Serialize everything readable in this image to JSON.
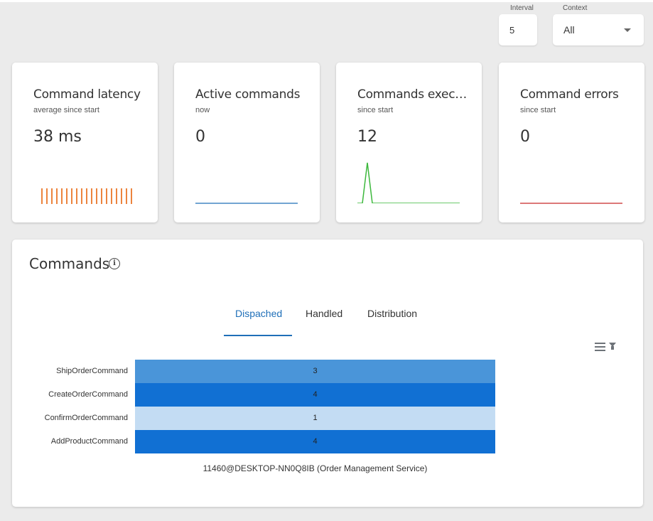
{
  "controls": {
    "interval": {
      "label": "Interval",
      "value": "5"
    },
    "context": {
      "label": "Context",
      "value": "All"
    }
  },
  "cards": [
    {
      "title": "Command latency",
      "subtitle": "average since start",
      "value": "38 ms",
      "color": "#e8650e"
    },
    {
      "title": "Active commands",
      "subtitle": "now",
      "value": "0",
      "color": "#1f6fb8"
    },
    {
      "title": "Commands exec…",
      "subtitle": "since start",
      "value": "12",
      "color": "#3cb83c"
    },
    {
      "title": "Command errors",
      "subtitle": "since start",
      "value": "0",
      "color": "#c62828"
    }
  ],
  "commands": {
    "title": "Commands",
    "tabs": [
      "Dispached",
      "Handled",
      "Distribution"
    ],
    "active_tab": "Dispached",
    "chart_data": {
      "type": "bar",
      "orientation": "horizontal",
      "categories": [
        "ShipOrderCommand",
        "CreateOrderCommand",
        "ConfirmOrderCommand",
        "AddProductCommand"
      ],
      "values": [
        3,
        4,
        1,
        4
      ],
      "colors": [
        "#4a95d9",
        "#1170d3",
        "#c3dcf3",
        "#1170d3"
      ],
      "xlabel": "11460@DESKTOP-NN0Q8IB (Order Management Service)"
    }
  }
}
